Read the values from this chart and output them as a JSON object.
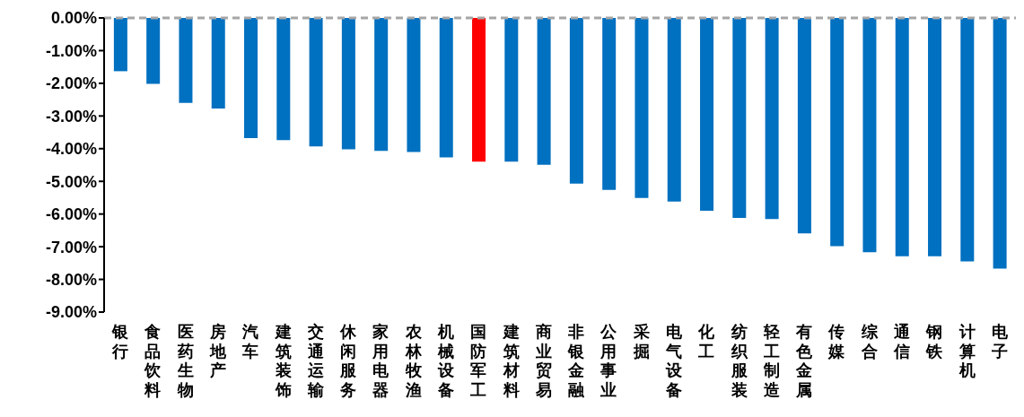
{
  "chart_data": {
    "type": "bar",
    "categories": [
      "银行",
      "食品饮料",
      "医药生物",
      "房地产",
      "汽车",
      "建筑装饰",
      "交通运输",
      "休闲服务",
      "家用电器",
      "农林牧渔",
      "机械设备",
      "国防军工",
      "建筑材料",
      "商业贸易",
      "非银金融",
      "公用事业",
      "采掘",
      "电气设备",
      "化工",
      "纺织服装",
      "轻工制造",
      "有色金属",
      "传媒",
      "综合",
      "通信",
      "钢铁",
      "计算机",
      "电子"
    ],
    "values": [
      -1.63,
      -2.02,
      -2.6,
      -2.77,
      -3.68,
      -3.74,
      -3.93,
      -4.02,
      -4.07,
      -4.1,
      -4.27,
      -4.4,
      -4.4,
      -4.49,
      -5.07,
      -5.26,
      -5.51,
      -5.62,
      -5.9,
      -6.12,
      -6.15,
      -6.59,
      -6.98,
      -7.17,
      -7.29,
      -7.29,
      -7.45,
      -7.67
    ],
    "colors": [
      "#0070c0",
      "#0070c0",
      "#0070c0",
      "#0070c0",
      "#0070c0",
      "#0070c0",
      "#0070c0",
      "#0070c0",
      "#0070c0",
      "#0070c0",
      "#0070c0",
      "#ff0000",
      "#0070c0",
      "#0070c0",
      "#0070c0",
      "#0070c0",
      "#0070c0",
      "#0070c0",
      "#0070c0",
      "#0070c0",
      "#0070c0",
      "#0070c0",
      "#0070c0",
      "#0070c0",
      "#0070c0",
      "#0070c0",
      "#0070c0",
      "#0070c0"
    ],
    "ylim": [
      -9,
      0
    ],
    "yticks": [
      {
        "value": 0,
        "label": "0.00%"
      },
      {
        "value": -1,
        "label": "-1.00%"
      },
      {
        "value": -2,
        "label": "-2.00%"
      },
      {
        "value": -3,
        "label": "-3.00%"
      },
      {
        "value": -4,
        "label": "-4.00%"
      },
      {
        "value": -5,
        "label": "-5.00%"
      },
      {
        "value": -6,
        "label": "-6.00%"
      },
      {
        "value": -7,
        "label": "-7.00%"
      },
      {
        "value": -8,
        "label": "-8.00%"
      },
      {
        "value": -9,
        "label": "-9.00%"
      }
    ],
    "ref_lines": [
      {
        "axis": "y",
        "value": 0,
        "color": "#a6a6a6",
        "line_style": "dashed"
      }
    ],
    "grid": false,
    "legend": false
  }
}
